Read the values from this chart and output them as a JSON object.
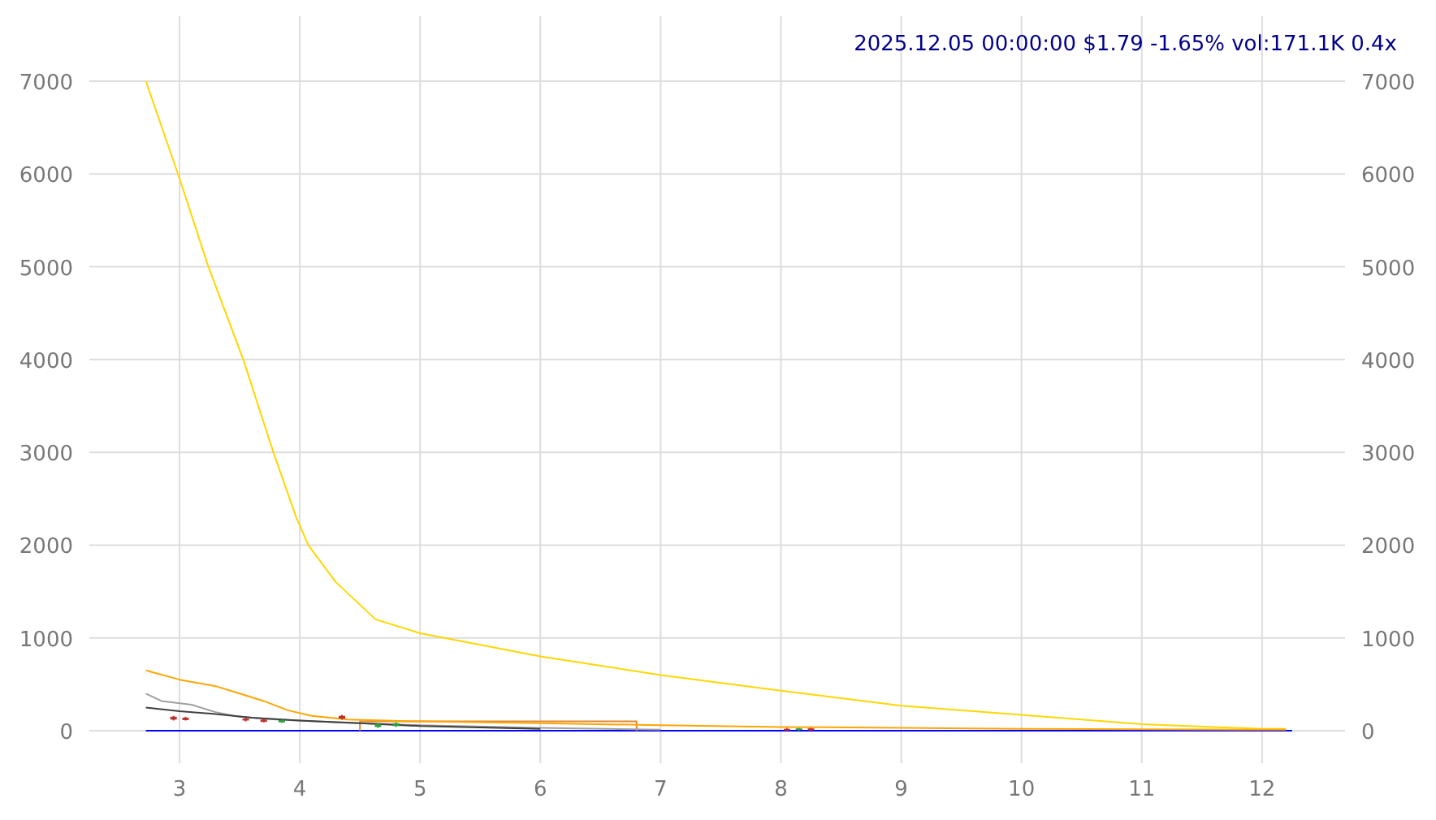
{
  "chart_data": {
    "type": "line",
    "title": "2025.12.05 00:00:00 $1.79 -1.65% vol:171.1K 0.4x",
    "xlim": [
      2.25,
      12.69
    ],
    "xticks": [
      3,
      4,
      5,
      6,
      7,
      8,
      9,
      10,
      11,
      12
    ],
    "ylim": [
      -350,
      7700
    ],
    "yticks": [
      0,
      1000,
      2000,
      3000,
      4000,
      5000,
      6000,
      7000
    ],
    "y2lim": [
      -350,
      7700
    ],
    "y2ticks": [
      0,
      1000,
      2000,
      3000,
      4000,
      5000,
      6000,
      7000
    ],
    "grid": true,
    "marker": "none",
    "series": [
      {
        "color": "#0000ff",
        "x": [
          2.72,
          12.25
        ],
        "values": [
          0,
          0
        ]
      },
      {
        "color": "#e08a30",
        "x": [
          4.5,
          4.5,
          6.8,
          6.8
        ],
        "values": [
          0,
          100,
          100,
          0
        ]
      },
      {
        "color": "#ffd700",
        "x": [
          2.72,
          3.0,
          3.24,
          3.53,
          3.78,
          3.97,
          4.07,
          4.3,
          4.63,
          5.0,
          6.0,
          7.0,
          8.0,
          9.0,
          10.0,
          11.0,
          12.0,
          12.2
        ],
        "values": [
          7000,
          5950,
          5000,
          4000,
          3000,
          2300,
          2000,
          1600,
          1200,
          1050,
          800,
          600,
          430,
          270,
          170,
          70,
          20,
          20
        ]
      },
      {
        "color": "#ffa500",
        "x": [
          2.72,
          3.0,
          3.3,
          3.5,
          3.7,
          3.9,
          4.1,
          4.4,
          5.0,
          6.0,
          7.0,
          8.0,
          9.0,
          10.0,
          12.2
        ],
        "values": [
          650,
          550,
          480,
          400,
          320,
          220,
          160,
          120,
          100,
          80,
          60,
          40,
          30,
          20,
          10
        ]
      },
      {
        "color": "#a0a0a0",
        "x": [
          2.72,
          2.85,
          3.1,
          3.3,
          3.5,
          3.8,
          4.3,
          5.0,
          6.0,
          7.0
        ],
        "values": [
          400,
          320,
          280,
          200,
          150,
          120,
          90,
          60,
          30,
          10
        ]
      },
      {
        "color": "#404040",
        "x": [
          2.72,
          3.0,
          3.3,
          3.6,
          4.0,
          4.5,
          5.0,
          6.0
        ],
        "values": [
          250,
          210,
          180,
          140,
          110,
          80,
          50,
          20
        ]
      },
      {
        "type": "candlestick",
        "x": [
          2.95,
          3.05,
          3.55,
          3.7,
          3.85,
          4.35,
          4.65,
          4.8,
          8.05,
          8.15,
          8.25
        ],
        "ohlc": [
          [
            150,
            160,
            110,
            120
          ],
          [
            140,
            150,
            110,
            115
          ],
          [
            130,
            140,
            100,
            110
          ],
          [
            120,
            130,
            90,
            95
          ],
          [
            90,
            120,
            85,
            115
          ],
          [
            160,
            170,
            120,
            130
          ],
          [
            40,
            80,
            30,
            70
          ],
          [
            50,
            90,
            40,
            80
          ],
          [
            20,
            30,
            0,
            10
          ],
          [
            10,
            30,
            0,
            25
          ],
          [
            25,
            30,
            0,
            5
          ]
        ],
        "colors": [
          "#c0302a",
          "#c0302a",
          "#c0302a",
          "#c0302a",
          "#2e9e3e",
          "#c0302a",
          "#2e9e3e",
          "#2e9e3e",
          "#c0302a",
          "#2e9e3e",
          "#c0302a"
        ]
      }
    ]
  }
}
